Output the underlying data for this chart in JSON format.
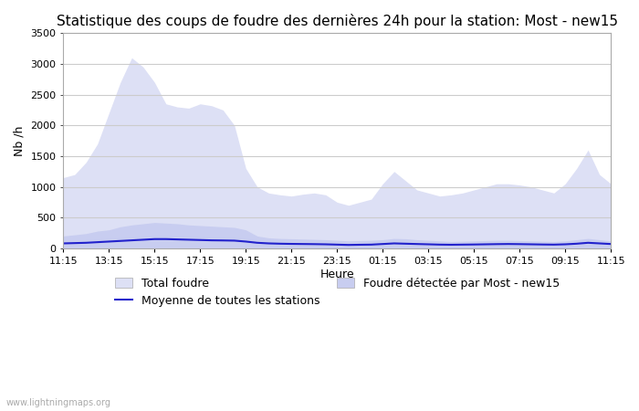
{
  "title": "Statistique des coups de foudre des dernières 24h pour la station: Most - new15",
  "ylabel": "Nb /h",
  "xlabel": "Heure",
  "watermark": "www.lightningmaps.org",
  "ylim": [
    0,
    3500
  ],
  "yticks": [
    0,
    500,
    1000,
    1500,
    2000,
    2500,
    3000,
    3500
  ],
  "xtick_labels": [
    "11:15",
    "13:15",
    "15:15",
    "17:15",
    "19:15",
    "21:15",
    "23:15",
    "01:15",
    "03:15",
    "05:15",
    "07:15",
    "09:15",
    "11:15"
  ],
  "fill_total_color": "#dde0f5",
  "fill_detected_color": "#c8cdf0",
  "line_mean_color": "#2222cc",
  "background_color": "#ffffff",
  "grid_color": "#cccccc",
  "title_fontsize": 11,
  "label_fontsize": 9,
  "tick_fontsize": 8,
  "legend_total_label": "Total foudre",
  "legend_detected_label": "Foudre détectée par Most - new15",
  "legend_mean_label": "Moyenne de toutes les stations",
  "x_positions": [
    0,
    1,
    2,
    3,
    4,
    5,
    6,
    7,
    8,
    9,
    10,
    11,
    12,
    13,
    14,
    15,
    16,
    17,
    18,
    19,
    20,
    21,
    22,
    23,
    24,
    25,
    26,
    27,
    28,
    29,
    30,
    31,
    32,
    33,
    34,
    35,
    36,
    37,
    38,
    39,
    40,
    41,
    42,
    43,
    44,
    45,
    46,
    47,
    48
  ],
  "total_foudre": [
    1150,
    1200,
    1400,
    1700,
    2200,
    2700,
    3100,
    2950,
    2700,
    2350,
    2300,
    2280,
    2350,
    2320,
    2250,
    2000,
    1300,
    1000,
    900,
    870,
    850,
    880,
    900,
    870,
    750,
    700,
    750,
    800,
    1050,
    1250,
    1100,
    950,
    900,
    850,
    870,
    900,
    950,
    1000,
    1050,
    1050,
    1030,
    1000,
    950,
    900,
    1050,
    1300,
    1600,
    1200,
    1050
  ],
  "detected_foudre": [
    200,
    220,
    240,
    280,
    300,
    350,
    380,
    400,
    420,
    410,
    400,
    380,
    370,
    360,
    350,
    340,
    300,
    200,
    170,
    160,
    155,
    150,
    145,
    140,
    130,
    120,
    125,
    130,
    140,
    160,
    155,
    140,
    130,
    120,
    110,
    115,
    120,
    125,
    130,
    130,
    125,
    120,
    115,
    110,
    120,
    140,
    160,
    140,
    120
  ],
  "mean_line": [
    80,
    85,
    90,
    100,
    110,
    120,
    130,
    140,
    150,
    150,
    145,
    140,
    135,
    130,
    128,
    125,
    110,
    90,
    80,
    75,
    72,
    70,
    68,
    65,
    60,
    55,
    58,
    60,
    70,
    80,
    75,
    70,
    65,
    60,
    58,
    60,
    62,
    65,
    68,
    70,
    68,
    65,
    62,
    60,
    65,
    75,
    90,
    80,
    70
  ]
}
